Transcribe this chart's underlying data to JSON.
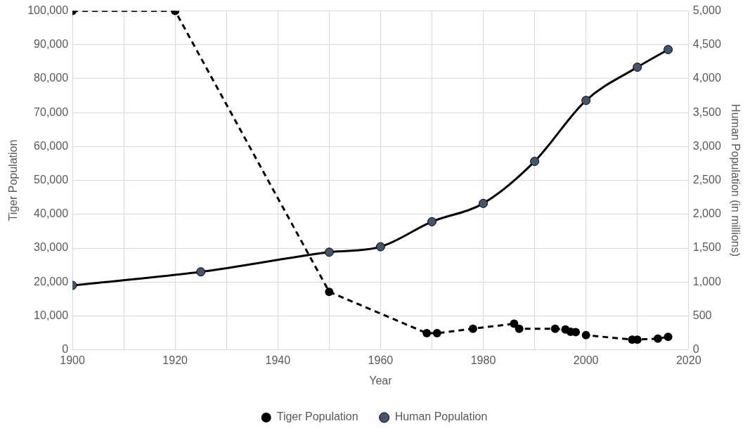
{
  "chart_data": {
    "type": "line",
    "xlabel": "Year",
    "ylabel": "Tiger Population",
    "y2label": "Human Population (in millions)",
    "xlim": [
      1900,
      2020
    ],
    "xticks": [
      1900,
      {
        "value": 1910,
        "label": null
      },
      1920,
      {
        "value": 1930,
        "label": null
      },
      1940,
      {
        "value": 1950,
        "label": null
      },
      1960,
      {
        "value": 1970,
        "label": null
      },
      1980,
      {
        "value": 1990,
        "label": null
      },
      2000,
      {
        "value": 2010,
        "label": null
      },
      2020
    ],
    "ylim": [
      0,
      100000
    ],
    "yticks": [
      {
        "value": 0,
        "label": "0"
      },
      {
        "value": 10000,
        "label": "10,000"
      },
      {
        "value": 20000,
        "label": "20,000"
      },
      {
        "value": 30000,
        "label": "30,000"
      },
      {
        "value": 40000,
        "label": "40,000"
      },
      {
        "value": 50000,
        "label": "50,000"
      },
      {
        "value": 60000,
        "label": "60,000"
      },
      {
        "value": 70000,
        "label": "70,000"
      },
      {
        "value": 80000,
        "label": "80,000"
      },
      {
        "value": 90000,
        "label": "90,000"
      },
      {
        "value": 100000,
        "label": "100,000"
      }
    ],
    "y2lim": [
      0,
      5000
    ],
    "y2ticks": [
      {
        "value": 0,
        "label": "0"
      },
      {
        "value": 500,
        "label": "500"
      },
      {
        "value": 1000,
        "label": "1,000"
      },
      {
        "value": 1500,
        "label": "1,500"
      },
      {
        "value": 2000,
        "label": "2,000"
      },
      {
        "value": 2500,
        "label": "2,500"
      },
      {
        "value": 3000,
        "label": "3,000"
      },
      {
        "value": 3500,
        "label": "3,500"
      },
      {
        "value": 4000,
        "label": "4,000"
      },
      {
        "value": 4500,
        "label": "4,500"
      },
      {
        "value": 5000,
        "label": "5,000"
      }
    ],
    "grid": true,
    "legend": "bottom",
    "marker": "circle",
    "series": [
      {
        "name": "Tiger Population",
        "color": "#000000",
        "line_style": "dashed",
        "x": [
          1900,
          1920,
          1950,
          1969,
          1971,
          1978,
          1986,
          1987,
          1994,
          1996,
          1997,
          1998,
          2000,
          2009,
          2010,
          2014,
          2016
        ],
        "values": [
          100000,
          100000,
          17100,
          4900,
          4900,
          6200,
          7700,
          6200,
          6200,
          6000,
          5300,
          5200,
          4300,
          3000,
          3000,
          3300,
          3800
        ]
      },
      {
        "name": "Human Population",
        "color": "#44546a",
        "line_style": "solid",
        "axis": "y2",
        "x": [
          1900,
          1925,
          1950,
          1960,
          1970,
          1980,
          1990,
          2000,
          2010,
          2016
        ],
        "values": [
          950,
          1150,
          1440,
          1520,
          1890,
          2160,
          2780,
          3680,
          4170,
          4430
        ]
      }
    ]
  }
}
